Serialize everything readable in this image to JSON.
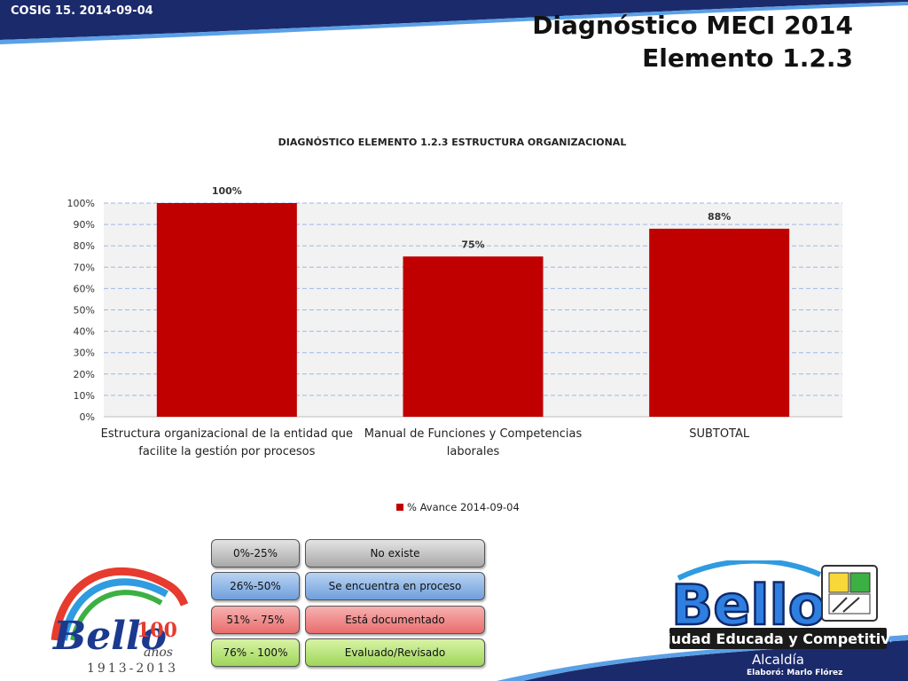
{
  "header": {
    "cosig": "COSIG 15. 2014-09-04",
    "title_line1": "Diagnóstico MECI 2014",
    "title_line2": "Elemento 1.2.3"
  },
  "chart_data": {
    "type": "bar",
    "title": "DIAGNÓSTICO ELEMENTO 1.2.3 ESTRUCTURA ORGANIZACIONAL",
    "categories": [
      [
        "Estructura organizacional de la entidad que",
        "facilite la gestión por procesos"
      ],
      [
        "Manual de Funciones y Competencias",
        "laborales"
      ],
      [
        "SUBTOTAL"
      ]
    ],
    "series": [
      {
        "name": "% Avance 2014-09-04",
        "values": [
          100,
          75,
          88
        ],
        "labels": [
          "100%",
          "75%",
          "88%"
        ],
        "color": "#c00000"
      }
    ],
    "yticks": [
      "0%",
      "10%",
      "20%",
      "30%",
      "40%",
      "50%",
      "60%",
      "70%",
      "80%",
      "90%",
      "100%"
    ],
    "ylim": [
      0,
      100
    ],
    "grid": true,
    "legend_position": "bottom"
  },
  "legend_table": {
    "rows": [
      {
        "range": "0%-25%",
        "status": "No existe",
        "style": "gray"
      },
      {
        "range": "26%-50%",
        "status": "Se encuentra en proceso",
        "style": "blue"
      },
      {
        "range": "51% - 75%",
        "status": "Está documentado",
        "style": "red"
      },
      {
        "range": "76% - 100%",
        "status": "Evaluado/Revisado",
        "style": "green"
      }
    ]
  },
  "footer": {
    "left_logo_text": "Bello",
    "left_logo_number": "100",
    "left_logo_anos": "años",
    "left_logo_years": "1913-2013",
    "right_logo_text": "Bello",
    "right_logo_slogan": "Ciudad Educada y Competitiva",
    "alcaldia": "Alcaldía",
    "elaboro": "Elaboró: Marlo Flórez"
  },
  "colors": {
    "navy": "#1b2a6b",
    "bar": "#c00000",
    "plot_bg": "#f2f2f2",
    "grid": "#9db8e8"
  }
}
